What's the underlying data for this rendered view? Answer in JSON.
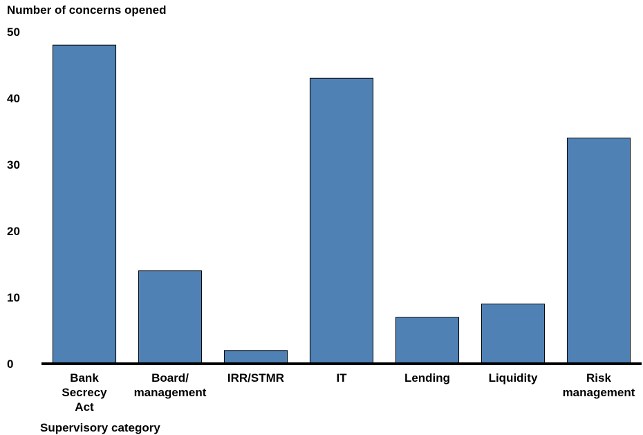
{
  "chart_data": {
    "type": "bar",
    "ylabel": "Number of concerns opened",
    "xlabel": "Supervisory category",
    "categories": [
      "Bank\nSecrecy\nAct",
      "Board/\nmanagement",
      "IRR/STMR",
      "IT",
      "Lending",
      "Liquidity",
      "Risk\nmanagement"
    ],
    "values": [
      48,
      14,
      2,
      43,
      7,
      9,
      34
    ],
    "ylim": [
      0,
      50
    ],
    "yticks": [
      0,
      10,
      20,
      30,
      40,
      50
    ],
    "grid": false,
    "legend": "none",
    "bar_color": "#4f81b4",
    "axis_color": "#000000"
  }
}
